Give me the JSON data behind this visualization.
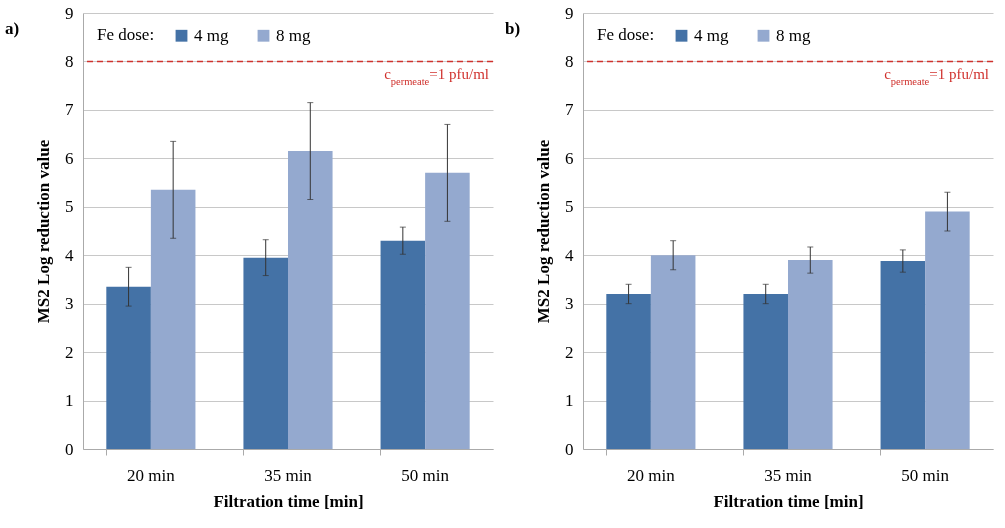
{
  "chart_data": [
    {
      "type": "bar",
      "title": "a)",
      "xlabel": "Filtration time [min]",
      "ylabel": "MS2 Log reduction value",
      "legend_title": "Fe dose:",
      "legend": "top left",
      "grid": "y",
      "categories": [
        "20 min",
        "35 min",
        "50 min"
      ],
      "series": [
        {
          "name": "4 mg",
          "color": "#4472a6",
          "values": [
            3.35,
            3.95,
            4.3
          ],
          "errors": [
            0.4,
            0.37,
            0.28
          ]
        },
        {
          "name": "8 mg",
          "color": "#94a9cf",
          "values": [
            5.35,
            6.15,
            5.7
          ],
          "errors": [
            1.0,
            1.0,
            1.0
          ]
        }
      ],
      "ylim": [
        0,
        9
      ],
      "yticks": [
        0,
        1,
        2,
        3,
        4,
        5,
        6,
        7,
        8,
        9
      ],
      "ref_lines": [
        {
          "axis": "y",
          "value": 8,
          "color": "#d0312d",
          "line_style": "dashed"
        }
      ],
      "annotations": [
        {
          "text": "c$_{permeate}$=1 pfu/ml",
          "y": 8
        }
      ]
    },
    {
      "type": "bar",
      "title": "b)",
      "xlabel": "Filtration time [min]",
      "ylabel": "MS2 Log reduction value",
      "legend_title": "Fe dose:",
      "legend": "top left",
      "grid": "y",
      "categories": [
        "20 min",
        "35 min",
        "50 min"
      ],
      "series": [
        {
          "name": "4 mg",
          "color": "#4472a6",
          "values": [
            3.2,
            3.2,
            3.88
          ],
          "errors": [
            0.2,
            0.2,
            0.23
          ]
        },
        {
          "name": "8 mg",
          "color": "#94a9cf",
          "values": [
            4.0,
            3.9,
            4.9
          ],
          "errors": [
            0.3,
            0.27,
            0.4
          ]
        }
      ],
      "ylim": [
        0,
        9
      ],
      "yticks": [
        0,
        1,
        2,
        3,
        4,
        5,
        6,
        7,
        8,
        9
      ],
      "ref_lines": [
        {
          "axis": "y",
          "value": 8,
          "color": "#d0312d",
          "line_style": "dashed"
        }
      ],
      "annotations": [
        {
          "text": "c$_{permeate}$=1 pfu/ml",
          "y": 8
        }
      ]
    }
  ]
}
